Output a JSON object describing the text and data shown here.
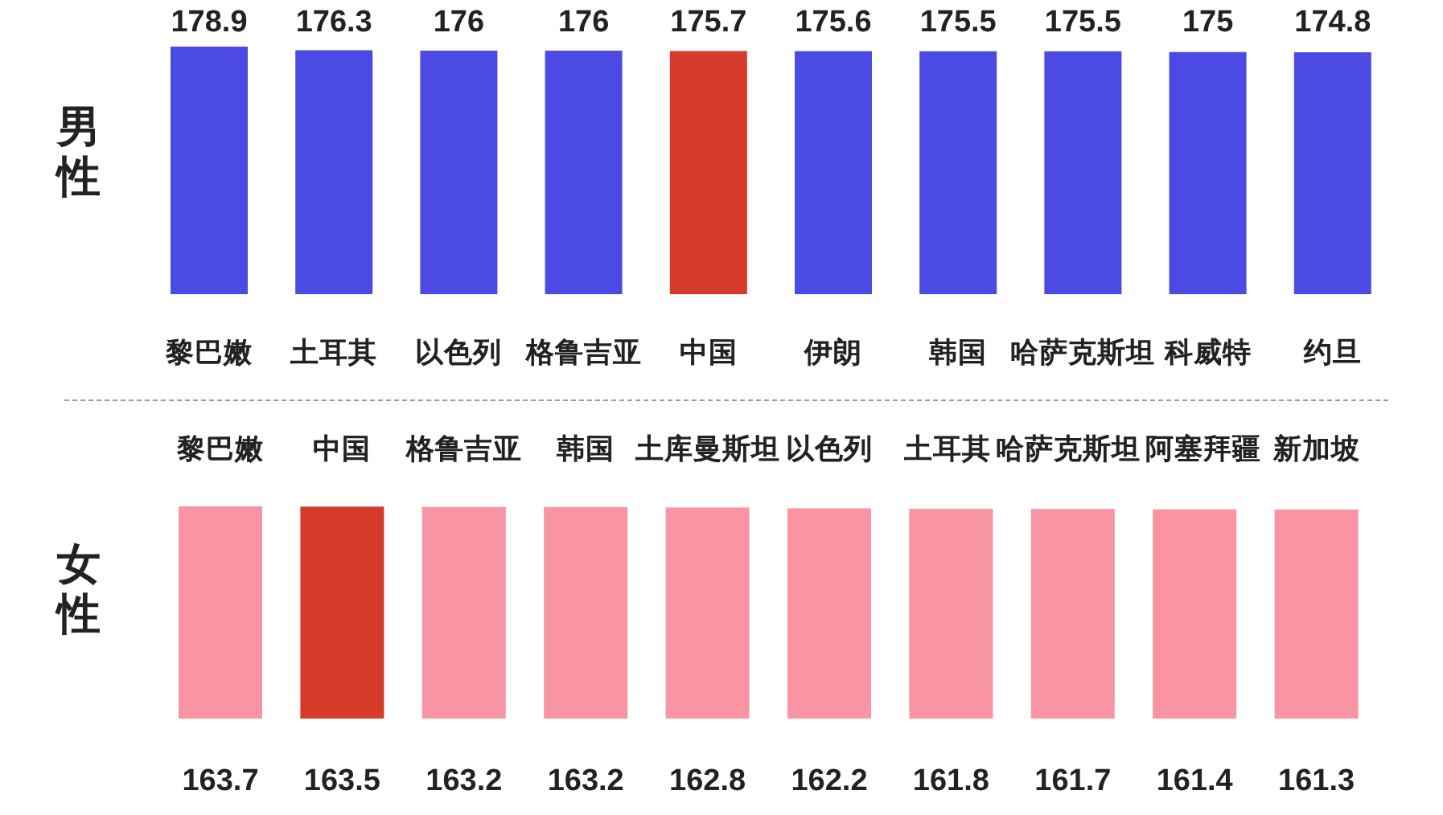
{
  "chart_data": [
    {
      "type": "bar",
      "ylabel": "男性",
      "categories": [
        "黎巴嫩",
        "土耳其",
        "以色列",
        "格鲁吉亚",
        "中国",
        "伊朗",
        "韩国",
        "哈萨克斯坦",
        "科威特",
        "约旦"
      ],
      "values": [
        178.9,
        176.3,
        176,
        176,
        175.7,
        175.6,
        175.5,
        175.5,
        175,
        174.8
      ],
      "colors": [
        "#4b4ae4",
        "#4b4ae4",
        "#4b4ae4",
        "#4b4ae4",
        "#d63a2b",
        "#4b4ae4",
        "#4b4ae4",
        "#4b4ae4",
        "#4b4ae4",
        "#4b4ae4"
      ],
      "data_labels": true
    },
    {
      "type": "bar",
      "ylabel": "女性",
      "categories": [
        "黎巴嫩",
        "中国",
        "格鲁吉亚",
        "韩国",
        "土库曼斯坦",
        "以色列",
        "土耳其",
        "哈萨克斯坦",
        "阿塞拜疆",
        "新加坡"
      ],
      "values": [
        163.7,
        163.5,
        163.2,
        163.2,
        162.8,
        162.2,
        161.8,
        161.7,
        161.4,
        161.3
      ],
      "colors": [
        "#f994a2",
        "#d63a2b",
        "#f994a2",
        "#f994a2",
        "#f994a2",
        "#f994a2",
        "#f994a2",
        "#f994a2",
        "#f994a2",
        "#f994a2"
      ],
      "data_labels": true
    }
  ]
}
